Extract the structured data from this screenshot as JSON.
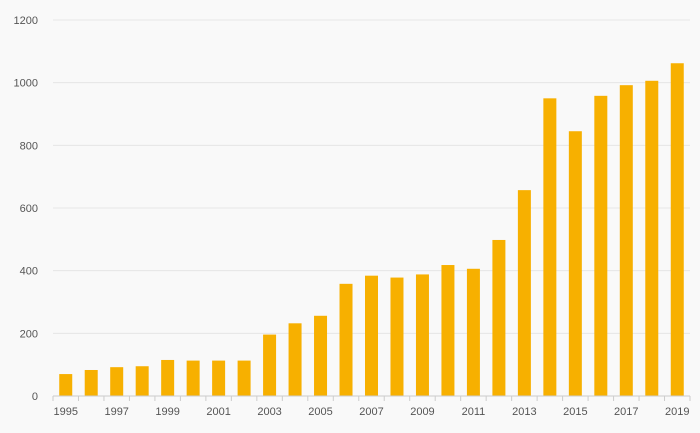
{
  "chart_data": {
    "type": "bar",
    "title": "",
    "xlabel": "",
    "ylabel": "",
    "ylim": [
      0,
      1200
    ],
    "y_ticks": [
      0,
      200,
      400,
      600,
      800,
      1000,
      1200
    ],
    "grid": true,
    "bar_color": "#f7b000",
    "categories": [
      "1995",
      "1996",
      "1997",
      "1998",
      "1999",
      "2000",
      "2001",
      "2002",
      "2003",
      "2004",
      "2005",
      "2006",
      "2007",
      "2008",
      "2009",
      "2010",
      "2011",
      "2012",
      "2013",
      "2014",
      "2015",
      "2016",
      "2017",
      "2018",
      "2019"
    ],
    "x_tick_labels": [
      "1995",
      "1997",
      "1999",
      "2001",
      "2003",
      "2005",
      "2007",
      "2009",
      "2011",
      "2013",
      "2015",
      "2017",
      "2019"
    ],
    "values": [
      70,
      83,
      92,
      95,
      115,
      113,
      113,
      113,
      196,
      232,
      256,
      358,
      384,
      378,
      388,
      418,
      406,
      498,
      657,
      950,
      845,
      958,
      992,
      1006,
      1062
    ]
  }
}
